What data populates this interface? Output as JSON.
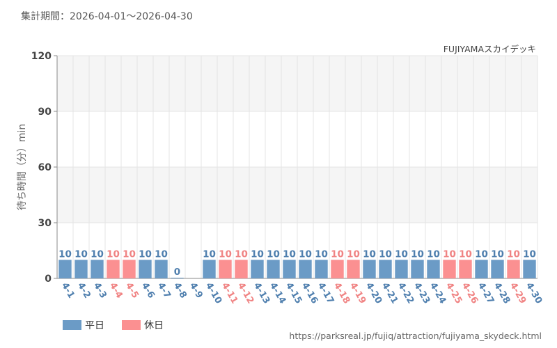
{
  "header": {
    "period": "集計期間：2026-04-01～2026-04-30",
    "attraction": "FUJIYAMAスカイデッキ"
  },
  "footer": {
    "source_url": "https://parksreal.jp/fujiq/attraction/fujiyama_skydeck.html"
  },
  "legend": {
    "items": [
      {
        "label": "平日",
        "color": "#6b9bc6"
      },
      {
        "label": "休日",
        "color": "#fb9091"
      }
    ]
  },
  "colors": {
    "weekday_bar": "#6b9bc6",
    "holiday_bar": "#fb9091",
    "weekday_text": "#4f7fae",
    "holiday_text": "#f08383",
    "band": "#f5f5f5",
    "grid": "#e4e4e4",
    "axis": "#888888"
  },
  "chart_data": {
    "type": "bar",
    "ylabel": "待ち時間（分）min",
    "ylim": [
      0,
      120
    ],
    "yticks": [
      0,
      30,
      60,
      90,
      120
    ],
    "grid": true,
    "legend_position": "bottom-left",
    "categories": [
      "4-1",
      "4-2",
      "4-3",
      "4-4",
      "4-5",
      "4-6",
      "4-7",
      "4-8",
      "4-9",
      "4-10",
      "4-11",
      "4-12",
      "4-13",
      "4-14",
      "4-15",
      "4-16",
      "4-17",
      "4-18",
      "4-19",
      "4-20",
      "4-21",
      "4-22",
      "4-23",
      "4-24",
      "4-25",
      "4-26",
      "4-27",
      "4-28",
      "4-29",
      "4-30"
    ],
    "values": [
      10,
      10,
      10,
      10,
      10,
      10,
      10,
      0,
      null,
      10,
      10,
      10,
      10,
      10,
      10,
      10,
      10,
      10,
      10,
      10,
      10,
      10,
      10,
      10,
      10,
      10,
      10,
      10,
      10,
      10
    ],
    "day_type": [
      "平日",
      "平日",
      "平日",
      "休日",
      "休日",
      "平日",
      "平日",
      "平日",
      "平日",
      "平日",
      "休日",
      "休日",
      "平日",
      "平日",
      "平日",
      "平日",
      "平日",
      "休日",
      "休日",
      "平日",
      "平日",
      "平日",
      "平日",
      "平日",
      "休日",
      "休日",
      "平日",
      "平日",
      "休日",
      "平日"
    ]
  }
}
